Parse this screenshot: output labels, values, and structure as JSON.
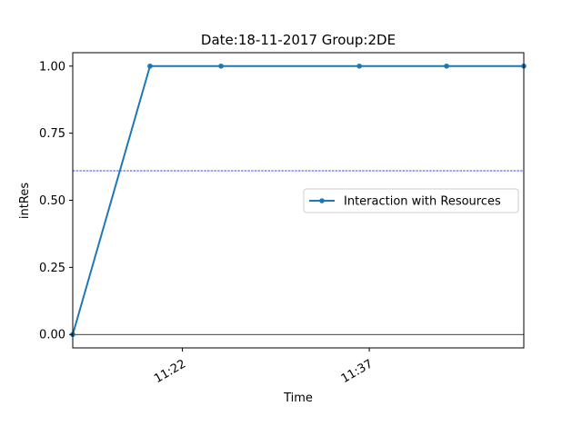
{
  "chart_data": {
    "type": "line",
    "title": "Date:18-11-2017  Group:2DE",
    "xlabel": "Time",
    "ylabel": "intRes",
    "x_ticks": [
      {
        "label": "11:22",
        "minutes": 8.8
      },
      {
        "label": "11:37",
        "minutes": 23.8
      }
    ],
    "y_ticks": [
      "0.00",
      "0.25",
      "0.50",
      "0.75",
      "1.00"
    ],
    "xlim_minutes": [
      0,
      36.2
    ],
    "ylim": [
      -0.05,
      1.05
    ],
    "series": [
      {
        "name": "Interaction with Resources",
        "color": "#1f77b4",
        "x_minutes": [
          0,
          6.2,
          11.9,
          23.0,
          30.0,
          36.2
        ],
        "y": [
          0,
          1,
          1,
          1,
          1,
          1
        ]
      }
    ],
    "hlines": [
      {
        "y": 0.61,
        "color": "#0000ff",
        "style": "dashed"
      },
      {
        "y": 0.0,
        "color": "#000000",
        "style": "solid"
      }
    ],
    "legend": {
      "position": "center-right"
    },
    "grid": false
  }
}
